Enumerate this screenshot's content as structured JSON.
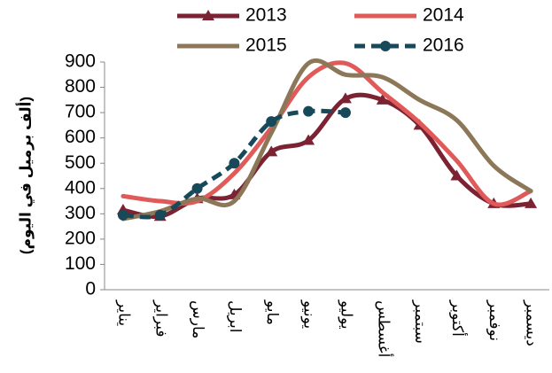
{
  "chart_data": {
    "type": "line",
    "y_label": "(ألف برميل في اليوم)",
    "categories": [
      "يناير",
      "فبراير",
      "مارس",
      "ابريل",
      "مايو",
      "يونيو",
      "يوليو",
      "أغسطس",
      "سبتمبر",
      "أكتوبر",
      "نوفمبر",
      "ديسمبر"
    ],
    "series": [
      {
        "name": "2013",
        "color": "#7b2333",
        "marker": "triangle",
        "dash": false,
        "values": [
          315,
          290,
          360,
          375,
          545,
          590,
          755,
          750,
          650,
          450,
          340,
          340
        ]
      },
      {
        "name": "2014",
        "color": "#e05a5a",
        "marker": null,
        "dash": false,
        "values": [
          370,
          350,
          350,
          460,
          640,
          840,
          895,
          780,
          660,
          510,
          340,
          390
        ]
      },
      {
        "name": "2015",
        "color": "#8c7758",
        "marker": null,
        "dash": false,
        "values": [
          280,
          310,
          360,
          350,
          620,
          895,
          850,
          840,
          750,
          670,
          490,
          390
        ]
      },
      {
        "name": "2016",
        "color": "#17495a",
        "marker": "circle",
        "dash": true,
        "values": [
          295,
          295,
          400,
          500,
          665,
          705,
          700,
          null,
          null,
          null,
          null,
          null
        ]
      }
    ],
    "ylim": [
      0,
      900
    ],
    "yticks": [
      0,
      100,
      200,
      300,
      400,
      500,
      600,
      700,
      800,
      900
    ],
    "grid": false
  }
}
